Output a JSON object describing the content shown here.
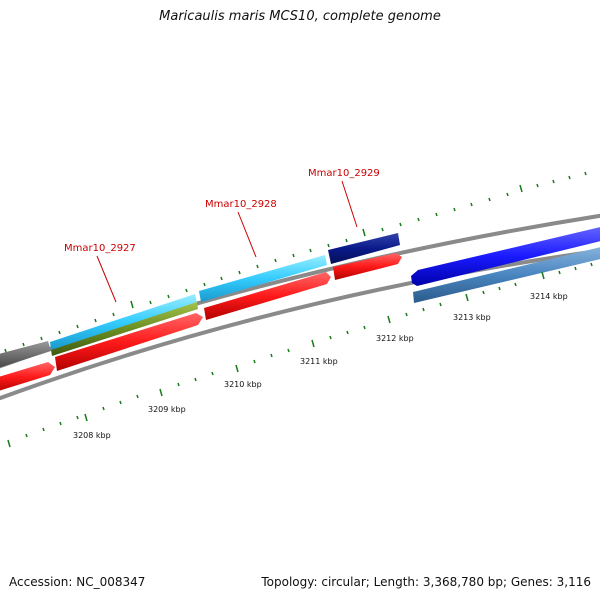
{
  "title": "Maricaulis maris MCS10, complete genome",
  "footer": {
    "accession": "Accession: NC_008347",
    "summary": "Topology: circular; Length: 3,368,780 bp; Genes: 3,116"
  },
  "gene_labels": [
    {
      "id": "g1",
      "text": "Mmar10_2927"
    },
    {
      "id": "g2",
      "text": "Mmar10_2928"
    },
    {
      "id": "g3",
      "text": "Mmar10_2929"
    }
  ],
  "kbp_labels": [
    "3208 kbp",
    "3209 kbp",
    "3210 kbp",
    "3211 kbp",
    "3212 kbp",
    "3213 kbp",
    "3214 kbp"
  ],
  "colors": {
    "backbone": "#8a8a8a",
    "cds_forward": "#ff1a1a",
    "highlight_cyan": "#33ccff",
    "highlight_navy": "#0a1a8a",
    "blue_feature": "#1a1aff",
    "steelblue_feature": "#4a86c0",
    "olive_feature": "#6b8e23",
    "grey_feature": "#6e6e6e",
    "tick_green": "#1a7a1a",
    "gene_label": "#cc0000"
  }
}
